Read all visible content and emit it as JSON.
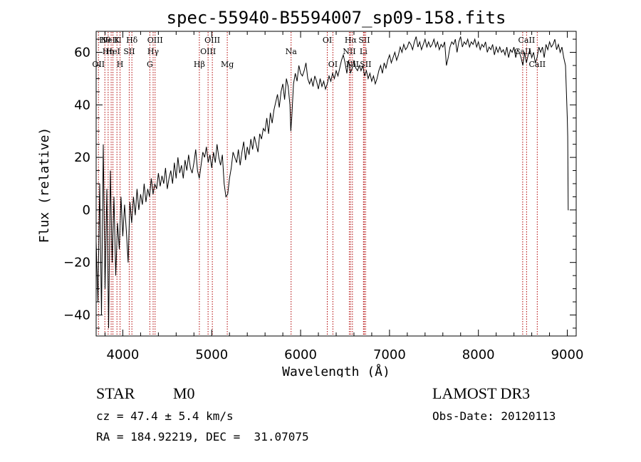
{
  "chart_data": {
    "type": "line",
    "title": "spec-55940-B5594007_sp09-158.fits",
    "xlabel": "Wavelength (Å)",
    "ylabel": "Flux (relative)",
    "xlim": [
      3700,
      9100
    ],
    "ylim": [
      -48,
      68
    ],
    "x_ticks": [
      4000,
      5000,
      6000,
      7000,
      8000,
      9000
    ],
    "y_ticks": [
      -40,
      -20,
      0,
      20,
      40,
      60
    ],
    "series": [
      {
        "name": "flux",
        "points": [
          [
            3700,
            -12
          ],
          [
            3720,
            -35
          ],
          [
            3740,
            10
          ],
          [
            3760,
            -40
          ],
          [
            3780,
            25
          ],
          [
            3800,
            -30
          ],
          [
            3820,
            8
          ],
          [
            3840,
            -45
          ],
          [
            3860,
            15
          ],
          [
            3880,
            -20
          ],
          [
            3900,
            5
          ],
          [
            3920,
            -25
          ],
          [
            3940,
            -5
          ],
          [
            3960,
            -15
          ],
          [
            3980,
            5
          ],
          [
            4000,
            -10
          ],
          [
            4020,
            2
          ],
          [
            4040,
            -8
          ],
          [
            4060,
            -20
          ],
          [
            4080,
            3
          ],
          [
            4100,
            -5
          ],
          [
            4120,
            5
          ],
          [
            4140,
            -2
          ],
          [
            4160,
            8
          ],
          [
            4180,
            0
          ],
          [
            4200,
            6
          ],
          [
            4220,
            2
          ],
          [
            4240,
            10
          ],
          [
            4260,
            3
          ],
          [
            4280,
            8
          ],
          [
            4300,
            5
          ],
          [
            4320,
            12
          ],
          [
            4340,
            6
          ],
          [
            4360,
            10
          ],
          [
            4380,
            8
          ],
          [
            4400,
            14
          ],
          [
            4420,
            9
          ],
          [
            4440,
            13
          ],
          [
            4460,
            10
          ],
          [
            4480,
            16
          ],
          [
            4500,
            8
          ],
          [
            4520,
            12
          ],
          [
            4540,
            15
          ],
          [
            4560,
            10
          ],
          [
            4580,
            18
          ],
          [
            4600,
            12
          ],
          [
            4620,
            20
          ],
          [
            4640,
            14
          ],
          [
            4660,
            17
          ],
          [
            4680,
            12
          ],
          [
            4700,
            19
          ],
          [
            4720,
            15
          ],
          [
            4740,
            21
          ],
          [
            4760,
            16
          ],
          [
            4780,
            14
          ],
          [
            4800,
            18
          ],
          [
            4820,
            23
          ],
          [
            4840,
            15
          ],
          [
            4860,
            12
          ],
          [
            4880,
            17
          ],
          [
            4900,
            22
          ],
          [
            4920,
            20
          ],
          [
            4940,
            24
          ],
          [
            4960,
            18
          ],
          [
            4980,
            21
          ],
          [
            5000,
            16
          ],
          [
            5020,
            22
          ],
          [
            5040,
            18
          ],
          [
            5060,
            25
          ],
          [
            5080,
            20
          ],
          [
            5100,
            17
          ],
          [
            5120,
            21
          ],
          [
            5140,
            10
          ],
          [
            5160,
            5
          ],
          [
            5180,
            6
          ],
          [
            5200,
            12
          ],
          [
            5220,
            16
          ],
          [
            5240,
            22
          ],
          [
            5260,
            20
          ],
          [
            5280,
            18
          ],
          [
            5300,
            23
          ],
          [
            5320,
            17
          ],
          [
            5340,
            22
          ],
          [
            5360,
            26
          ],
          [
            5380,
            19
          ],
          [
            5400,
            24
          ],
          [
            5420,
            21
          ],
          [
            5440,
            27
          ],
          [
            5460,
            23
          ],
          [
            5480,
            28
          ],
          [
            5500,
            25
          ],
          [
            5520,
            22
          ],
          [
            5540,
            29
          ],
          [
            5560,
            27
          ],
          [
            5580,
            31
          ],
          [
            5600,
            30
          ],
          [
            5620,
            35
          ],
          [
            5640,
            29
          ],
          [
            5660,
            37
          ],
          [
            5680,
            33
          ],
          [
            5700,
            38
          ],
          [
            5720,
            41
          ],
          [
            5740,
            44
          ],
          [
            5760,
            39
          ],
          [
            5780,
            45
          ],
          [
            5800,
            48
          ],
          [
            5820,
            42
          ],
          [
            5840,
            50
          ],
          [
            5860,
            47
          ],
          [
            5880,
            40
          ],
          [
            5890,
            30
          ],
          [
            5900,
            35
          ],
          [
            5920,
            48
          ],
          [
            5940,
            52
          ],
          [
            5960,
            49
          ],
          [
            5980,
            55
          ],
          [
            6000,
            52
          ],
          [
            6020,
            51
          ],
          [
            6040,
            53
          ],
          [
            6060,
            56
          ],
          [
            6080,
            50
          ],
          [
            6100,
            48
          ],
          [
            6120,
            50
          ],
          [
            6140,
            47
          ],
          [
            6160,
            51
          ],
          [
            6180,
            49
          ],
          [
            6200,
            46
          ],
          [
            6220,
            50
          ],
          [
            6240,
            47
          ],
          [
            6260,
            49
          ],
          [
            6280,
            46
          ],
          [
            6300,
            48
          ],
          [
            6320,
            51
          ],
          [
            6340,
            49
          ],
          [
            6360,
            52
          ],
          [
            6380,
            50
          ],
          [
            6400,
            53
          ],
          [
            6420,
            51
          ],
          [
            6440,
            54
          ],
          [
            6460,
            57
          ],
          [
            6480,
            59
          ],
          [
            6500,
            56
          ],
          [
            6520,
            52
          ],
          [
            6540,
            57
          ],
          [
            6560,
            52
          ],
          [
            6580,
            54
          ],
          [
            6600,
            57
          ],
          [
            6620,
            54
          ],
          [
            6640,
            53
          ],
          [
            6660,
            55
          ],
          [
            6680,
            53
          ],
          [
            6700,
            55
          ],
          [
            6720,
            51
          ],
          [
            6740,
            53
          ],
          [
            6760,
            50
          ],
          [
            6780,
            52
          ],
          [
            6800,
            49
          ],
          [
            6820,
            51
          ],
          [
            6840,
            48
          ],
          [
            6860,
            50
          ],
          [
            6880,
            53
          ],
          [
            6900,
            55
          ],
          [
            6920,
            52
          ],
          [
            6940,
            56
          ],
          [
            6960,
            54
          ],
          [
            6980,
            57
          ],
          [
            7000,
            59
          ],
          [
            7020,
            56
          ],
          [
            7040,
            58
          ],
          [
            7060,
            60
          ],
          [
            7080,
            57
          ],
          [
            7100,
            59
          ],
          [
            7120,
            62
          ],
          [
            7140,
            60
          ],
          [
            7160,
            63
          ],
          [
            7180,
            61
          ],
          [
            7200,
            62
          ],
          [
            7220,
            64
          ],
          [
            7240,
            63
          ],
          [
            7260,
            61
          ],
          [
            7280,
            64
          ],
          [
            7300,
            66
          ],
          [
            7320,
            62
          ],
          [
            7340,
            64
          ],
          [
            7360,
            61
          ],
          [
            7380,
            63
          ],
          [
            7400,
            65
          ],
          [
            7420,
            62
          ],
          [
            7440,
            64
          ],
          [
            7460,
            62
          ],
          [
            7480,
            63
          ],
          [
            7500,
            65
          ],
          [
            7520,
            62
          ],
          [
            7540,
            64
          ],
          [
            7560,
            61
          ],
          [
            7580,
            63
          ],
          [
            7600,
            62
          ],
          [
            7620,
            64
          ],
          [
            7640,
            55
          ],
          [
            7660,
            58
          ],
          [
            7680,
            62
          ],
          [
            7700,
            64
          ],
          [
            7720,
            63
          ],
          [
            7740,
            65
          ],
          [
            7760,
            60
          ],
          [
            7780,
            64
          ],
          [
            7800,
            66
          ],
          [
            7820,
            62
          ],
          [
            7840,
            64
          ],
          [
            7860,
            63
          ],
          [
            7880,
            65
          ],
          [
            7900,
            62
          ],
          [
            7920,
            64
          ],
          [
            7940,
            63
          ],
          [
            7960,
            65
          ],
          [
            7980,
            62
          ],
          [
            8000,
            64
          ],
          [
            8020,
            61
          ],
          [
            8040,
            63
          ],
          [
            8060,
            62
          ],
          [
            8080,
            64
          ],
          [
            8100,
            60
          ],
          [
            8120,
            62
          ],
          [
            8140,
            61
          ],
          [
            8160,
            63
          ],
          [
            8180,
            59
          ],
          [
            8200,
            62
          ],
          [
            8220,
            60
          ],
          [
            8240,
            62
          ],
          [
            8260,
            60
          ],
          [
            8280,
            61
          ],
          [
            8300,
            59
          ],
          [
            8320,
            62
          ],
          [
            8340,
            58
          ],
          [
            8360,
            61
          ],
          [
            8380,
            60
          ],
          [
            8400,
            62
          ],
          [
            8420,
            58
          ],
          [
            8440,
            61
          ],
          [
            8460,
            60
          ],
          [
            8480,
            58
          ],
          [
            8500,
            55
          ],
          [
            8520,
            60
          ],
          [
            8540,
            56
          ],
          [
            8560,
            59
          ],
          [
            8580,
            61
          ],
          [
            8600,
            58
          ],
          [
            8620,
            60
          ],
          [
            8640,
            56
          ],
          [
            8660,
            58
          ],
          [
            8680,
            62
          ],
          [
            8700,
            60
          ],
          [
            8720,
            62
          ],
          [
            8740,
            58
          ],
          [
            8760,
            63
          ],
          [
            8780,
            61
          ],
          [
            8800,
            64
          ],
          [
            8820,
            62
          ],
          [
            8840,
            63
          ],
          [
            8860,
            65
          ],
          [
            8880,
            61
          ],
          [
            8900,
            63
          ],
          [
            8920,
            60
          ],
          [
            8940,
            62
          ],
          [
            8960,
            58
          ],
          [
            8980,
            55
          ],
          [
            9000,
            35
          ],
          [
            9005,
            28
          ],
          [
            9010,
            0
          ],
          [
            9015,
            0
          ]
        ]
      }
    ],
    "line_marks": [
      {
        "wave": 3726,
        "labels": [
          "OII"
        ],
        "row": 3
      },
      {
        "wave": 3798,
        "labels": [
          "Hθ"
        ],
        "row": 1
      },
      {
        "wave": 3835,
        "labels": [
          "Hη"
        ],
        "row": 2
      },
      {
        "wave": 3869,
        "labels": [
          "NeIII"
        ],
        "row": 1
      },
      {
        "wave": 3889,
        "labels": [
          "HeI"
        ],
        "row": 2
      },
      {
        "wave": 3934,
        "labels": [
          "K"
        ],
        "row": 1
      },
      {
        "wave": 3969,
        "labels": [
          "H"
        ],
        "row": 3
      },
      {
        "wave": 4072,
        "labels": [
          "SII"
        ],
        "row": 2
      },
      {
        "wave": 4102,
        "labels": [
          "Hδ"
        ],
        "row": 1
      },
      {
        "wave": 4304,
        "labels": [
          "G"
        ],
        "row": 3
      },
      {
        "wave": 4341,
        "labels": [
          "Hγ"
        ],
        "row": 2
      },
      {
        "wave": 4363,
        "labels": [
          "OIII"
        ],
        "row": 1
      },
      {
        "wave": 4861,
        "labels": [
          "Hβ"
        ],
        "row": 3
      },
      {
        "wave": 4959,
        "labels": [
          "OIII"
        ],
        "row": 2
      },
      {
        "wave": 5007,
        "labels": [
          "OIII"
        ],
        "row": 1
      },
      {
        "wave": 5175,
        "labels": [
          "Mg"
        ],
        "row": 3
      },
      {
        "wave": 5893,
        "labels": [
          "Na"
        ],
        "row": 2
      },
      {
        "wave": 6300,
        "labels": [
          "OI"
        ],
        "row": 1
      },
      {
        "wave": 6363,
        "labels": [
          "OI"
        ],
        "row": 3
      },
      {
        "wave": 6548,
        "labels": [
          "NII"
        ],
        "row": 2
      },
      {
        "wave": 6563,
        "labels": [
          "Hα"
        ],
        "row": 1
      },
      {
        "wave": 6583,
        "labels": [
          "NII"
        ],
        "row": 3
      },
      {
        "wave": 6707,
        "labels": [
          "Li"
        ],
        "row": 2
      },
      {
        "wave": 6716,
        "labels": [
          "SII"
        ],
        "row": 1
      },
      {
        "wave": 6731,
        "labels": [
          "SII"
        ],
        "row": 3
      },
      {
        "wave": 8498,
        "labels": [
          "CaII"
        ],
        "row": 2
      },
      {
        "wave": 8542,
        "labels": [
          "CaII"
        ],
        "row": 1
      },
      {
        "wave": 8662,
        "labels": [
          "CaII"
        ],
        "row": 3
      }
    ]
  },
  "info": {
    "class": "STAR",
    "subclass": "M0",
    "survey": "LAMOST DR3",
    "redshift": "cz = 47.4 ± 5.4 km/s",
    "obs_date": "Obs-Date: 20120113",
    "coords": "RA = 184.92219, DEC =  31.07075"
  }
}
